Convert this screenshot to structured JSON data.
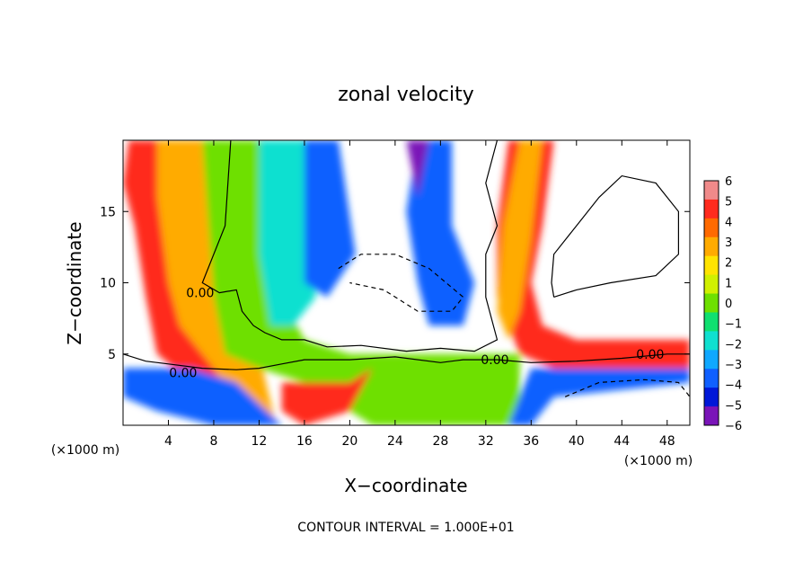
{
  "chart_data": {
    "type": "heatmap",
    "title": "zonal velocity",
    "xlabel": "X−coordinate",
    "ylabel": "Z−coordinate",
    "x_unit_left": "(×1000 m)",
    "x_unit_right": "(×1000 m)",
    "footer": "CONTOUR INTERVAL = 1.000E+01",
    "xlim": [
      0,
      50
    ],
    "ylim": [
      0,
      20
    ],
    "x_ticks": [
      4,
      8,
      12,
      16,
      20,
      24,
      28,
      32,
      36,
      40,
      44,
      48
    ],
    "x_tick_labels": [
      "4",
      "8",
      "12",
      "16",
      "20",
      "24",
      "28",
      "32",
      "36",
      "40",
      "44",
      "48"
    ],
    "y_ticks": [
      5,
      10,
      15
    ],
    "y_tick_labels": [
      "5",
      "10",
      "15"
    ],
    "colorbar": {
      "range": [
        -6,
        6
      ],
      "tick_labels": [
        "6",
        "5",
        "4",
        "3",
        "2",
        "1",
        "0",
        "−1",
        "−2",
        "−3",
        "−4",
        "−5",
        "−6"
      ],
      "colors": [
        "#f08a8a",
        "#ff2b1e",
        "#ff6a00",
        "#ffab00",
        "#ffe400",
        "#d0f000",
        "#6ee000",
        "#10e070",
        "#10e0d0",
        "#10a8ff",
        "#1060ff",
        "#0018d8",
        "#7a14b8"
      ]
    },
    "contour_labels": [
      {
        "text": "0.00",
        "x": 6.8,
        "y": 9.3
      },
      {
        "text": "0.00",
        "x": 5.3,
        "y": 3.7
      },
      {
        "text": "0.00",
        "x": 32.8,
        "y": 4.6
      },
      {
        "text": "0.00",
        "x": 46.5,
        "y": 5.0
      }
    ],
    "features": {
      "positive_bands": [
        {
          "x_top": 4,
          "x_bottom": 8
        },
        {
          "x_top": 35,
          "x_bottom": 38
        }
      ],
      "negative_core": {
        "x": 19,
        "note": "strong negative column near x≈18–20"
      },
      "negative_tongue": {
        "x": 28,
        "y_range": [
          6,
          20
        ]
      },
      "zero_line_height": 5
    }
  }
}
